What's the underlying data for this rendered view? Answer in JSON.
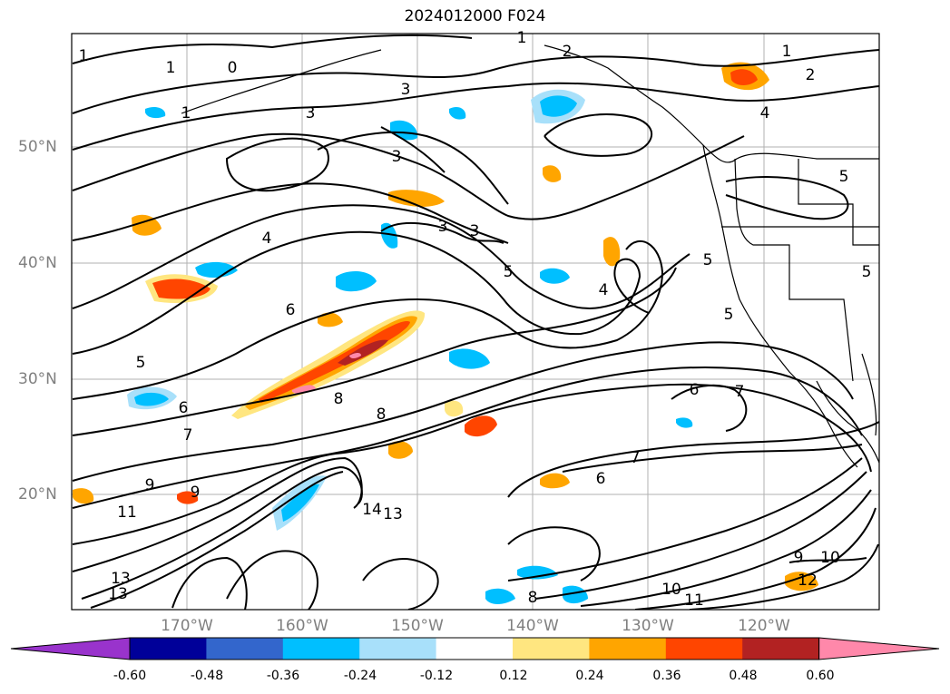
{
  "title": "2024012000 F024",
  "lat_labels": [
    "50°N",
    "40°N",
    "30°N",
    "20°N"
  ],
  "lon_labels": [
    "170°W",
    "160°W",
    "150°W",
    "140°W",
    "130°W",
    "120°W"
  ],
  "colorbar": {
    "ticks": [
      "-0.60",
      "-0.48",
      "-0.36",
      "-0.24",
      "-0.12",
      "0.12",
      "0.24",
      "0.36",
      "0.48",
      "0.60"
    ],
    "colors": [
      "#9933cc",
      "#000099",
      "#3366cc",
      "#00bfff",
      "#a8e0fa",
      "#ffffff",
      "#ffe680",
      "#ffa500",
      "#ff4500",
      "#b22222",
      "#ff88aa"
    ]
  },
  "contour_labels": [
    "0",
    "1",
    "1",
    "1",
    "1",
    "1",
    "2",
    "2",
    "3",
    "3",
    "3",
    "3",
    "3",
    "4",
    "4",
    "4",
    "5",
    "5",
    "5",
    "5",
    "5",
    "5",
    "6",
    "6",
    "6",
    "6",
    "7",
    "7",
    "7",
    "8",
    "8",
    "8",
    "9",
    "9",
    "9",
    "10",
    "10",
    "11",
    "11",
    "12",
    "13",
    "13",
    "13",
    "14"
  ]
}
